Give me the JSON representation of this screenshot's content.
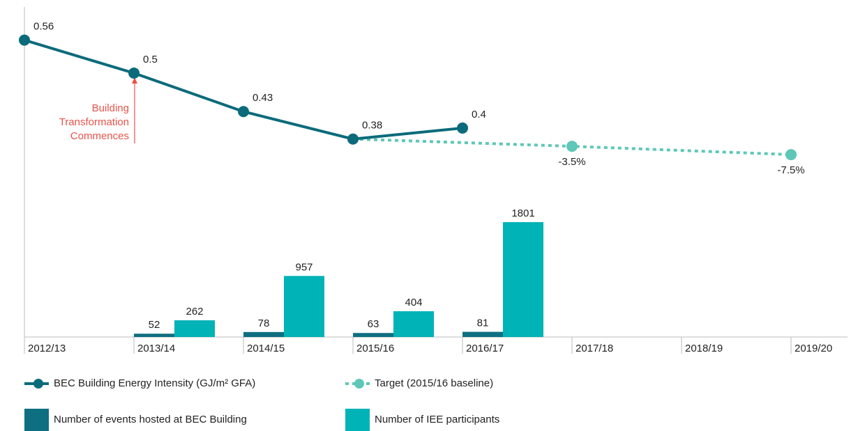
{
  "chart_data": {
    "type": "combo",
    "categories": [
      "2012/13",
      "2013/14",
      "2014/15",
      "2015/16",
      "2016/17",
      "2017/18",
      "2018/19",
      "2019/20"
    ],
    "annotation": [
      "Building",
      "Transformation",
      "Commences"
    ],
    "ylim": [
      0.02,
      0.6
    ],
    "y2lim": [
      0,
      5000
    ],
    "y3lim": [
      -95,
      58
    ],
    "series": [
      {
        "name": "BEC Building Energy Intensity (GJ/m² GFA)",
        "type": "line",
        "color": "#0b6b7b",
        "values": [
          0.56,
          0.5,
          0.43,
          0.38,
          0.4,
          null,
          null,
          null
        ]
      },
      {
        "name": "Target (2015/16 baseline)",
        "type": "line",
        "dashed": true,
        "axis": "y3",
        "color": "#5ec7b7",
        "values": [
          null,
          null,
          null,
          0,
          -1.75,
          -3.5,
          -5.5,
          -7.5
        ],
        "value_labels": [
          null,
          null,
          null,
          null,
          null,
          "-3.5%",
          null,
          "-7.5%"
        ]
      },
      {
        "name": "Number of events hosted at BEC Building",
        "type": "bar",
        "axis": "y2",
        "color": "#0e6f80",
        "values": [
          null,
          52,
          78,
          63,
          81,
          null,
          null,
          null
        ]
      },
      {
        "name": "Number of IEE participants",
        "type": "bar",
        "axis": "y2",
        "color": "#00b3b6",
        "values": [
          null,
          262,
          957,
          404,
          1801,
          null,
          null,
          null
        ]
      }
    ]
  }
}
